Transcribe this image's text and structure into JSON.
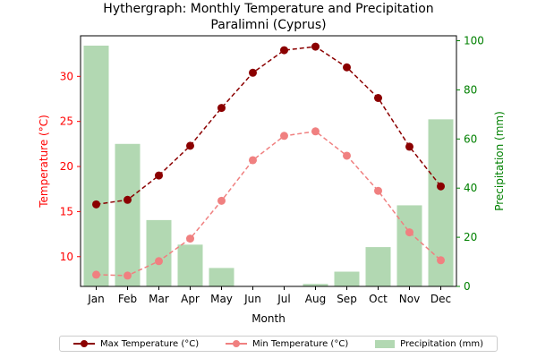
{
  "chart_data": {
    "type": "bar+line",
    "title": "Hythergraph: Monthly Temperature and Precipitation",
    "subtitle": "Paralimni (Cyprus)",
    "xlabel": "Month",
    "ylabel_left": "Temperature (°C)",
    "ylabel_right": "Precipitation (mm)",
    "categories": [
      "Jan",
      "Feb",
      "Mar",
      "Apr",
      "May",
      "Jun",
      "Jul",
      "Aug",
      "Sep",
      "Oct",
      "Nov",
      "Dec"
    ],
    "ylim_left": [
      6.7,
      34.5
    ],
    "yticks_left": [
      "10",
      "15",
      "20",
      "25",
      "30"
    ],
    "ylim_right": [
      0,
      102
    ],
    "yticks_right": [
      "0",
      "20",
      "40",
      "60",
      "80",
      "100"
    ],
    "series": [
      {
        "name": "Max Temperature (°C)",
        "kind": "line",
        "axis": "left",
        "color": "#8b0000",
        "style": "dashed",
        "values": [
          15.8,
          16.3,
          19.0,
          22.3,
          26.5,
          30.4,
          32.9,
          33.3,
          31.0,
          27.6,
          22.2,
          17.8
        ]
      },
      {
        "name": "Min Temperature (°C)",
        "kind": "line",
        "axis": "left",
        "color": "#f08080",
        "style": "dashed",
        "values": [
          8.0,
          7.9,
          9.5,
          12.0,
          16.2,
          20.7,
          23.4,
          23.9,
          21.2,
          17.3,
          12.7,
          9.6
        ]
      },
      {
        "name": "Precipitation (mm)",
        "kind": "bar",
        "axis": "right",
        "color": "#b2d8b2",
        "values": [
          98,
          58,
          27,
          17,
          7.5,
          0,
          0,
          1,
          6,
          16,
          33,
          68
        ]
      }
    ],
    "colors": {
      "left_axis": "#ff0000",
      "right_axis": "#008000"
    },
    "grid": false,
    "legend": "bottom-center"
  }
}
